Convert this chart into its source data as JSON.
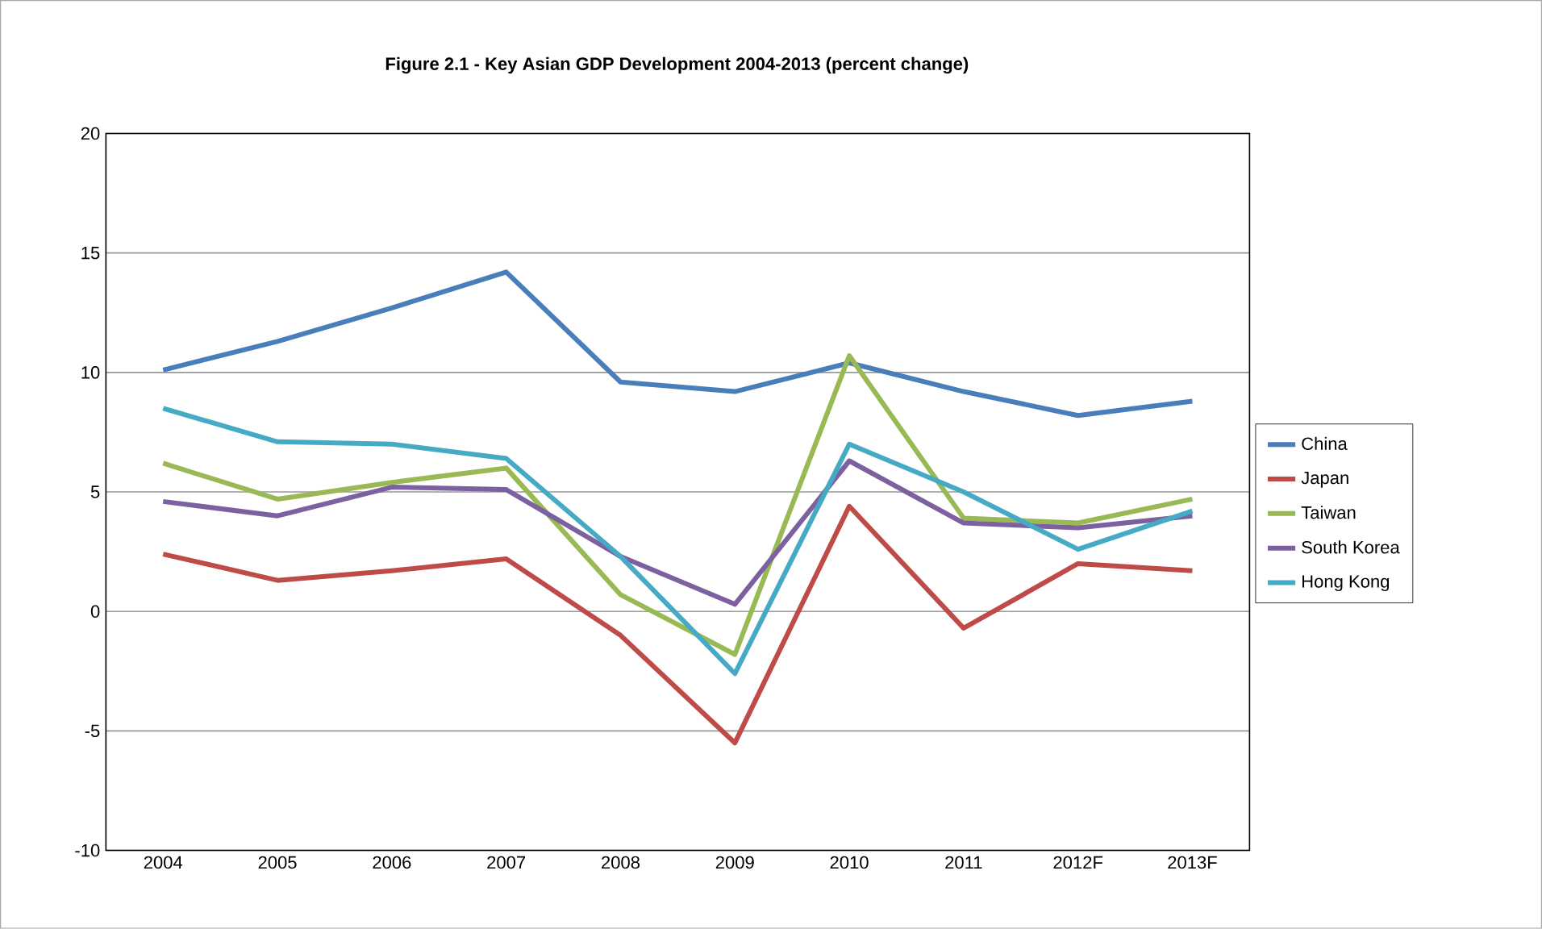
{
  "chart_data": {
    "type": "line",
    "title": "Figure 2.1 - Key Asian GDP Development 2004-2013 (percent change)",
    "categories": [
      "2004",
      "2005",
      "2006",
      "2007",
      "2008",
      "2009",
      "2010",
      "2011",
      "2012F",
      "2013F"
    ],
    "series": [
      {
        "name": "China",
        "color": "#4a7ebb",
        "values": [
          10.1,
          11.3,
          12.7,
          14.2,
          9.6,
          9.2,
          10.4,
          9.2,
          8.2,
          8.8
        ]
      },
      {
        "name": "Japan",
        "color": "#be4b48",
        "values": [
          2.4,
          1.3,
          1.7,
          2.2,
          -1.0,
          -5.5,
          4.4,
          -0.7,
          2.0,
          1.7
        ]
      },
      {
        "name": "Taiwan",
        "color": "#98b954",
        "values": [
          6.2,
          4.7,
          5.4,
          6.0,
          0.7,
          -1.8,
          10.7,
          3.9,
          3.7,
          4.7
        ]
      },
      {
        "name": "South Korea",
        "color": "#7d60a0",
        "values": [
          4.6,
          4.0,
          5.2,
          5.1,
          2.3,
          0.3,
          6.3,
          3.7,
          3.5,
          4.0
        ]
      },
      {
        "name": "Hong Kong",
        "color": "#46aac5",
        "values": [
          8.5,
          7.1,
          7.0,
          6.4,
          2.3,
          -2.6,
          7.0,
          5.0,
          2.6,
          4.2
        ]
      }
    ],
    "ylim": [
      -10,
      20
    ],
    "yticks": [
      -10,
      -5,
      0,
      5,
      10,
      15,
      20
    ],
    "grid": "y",
    "legend": "right",
    "line_style": "solid",
    "marker": "none"
  }
}
